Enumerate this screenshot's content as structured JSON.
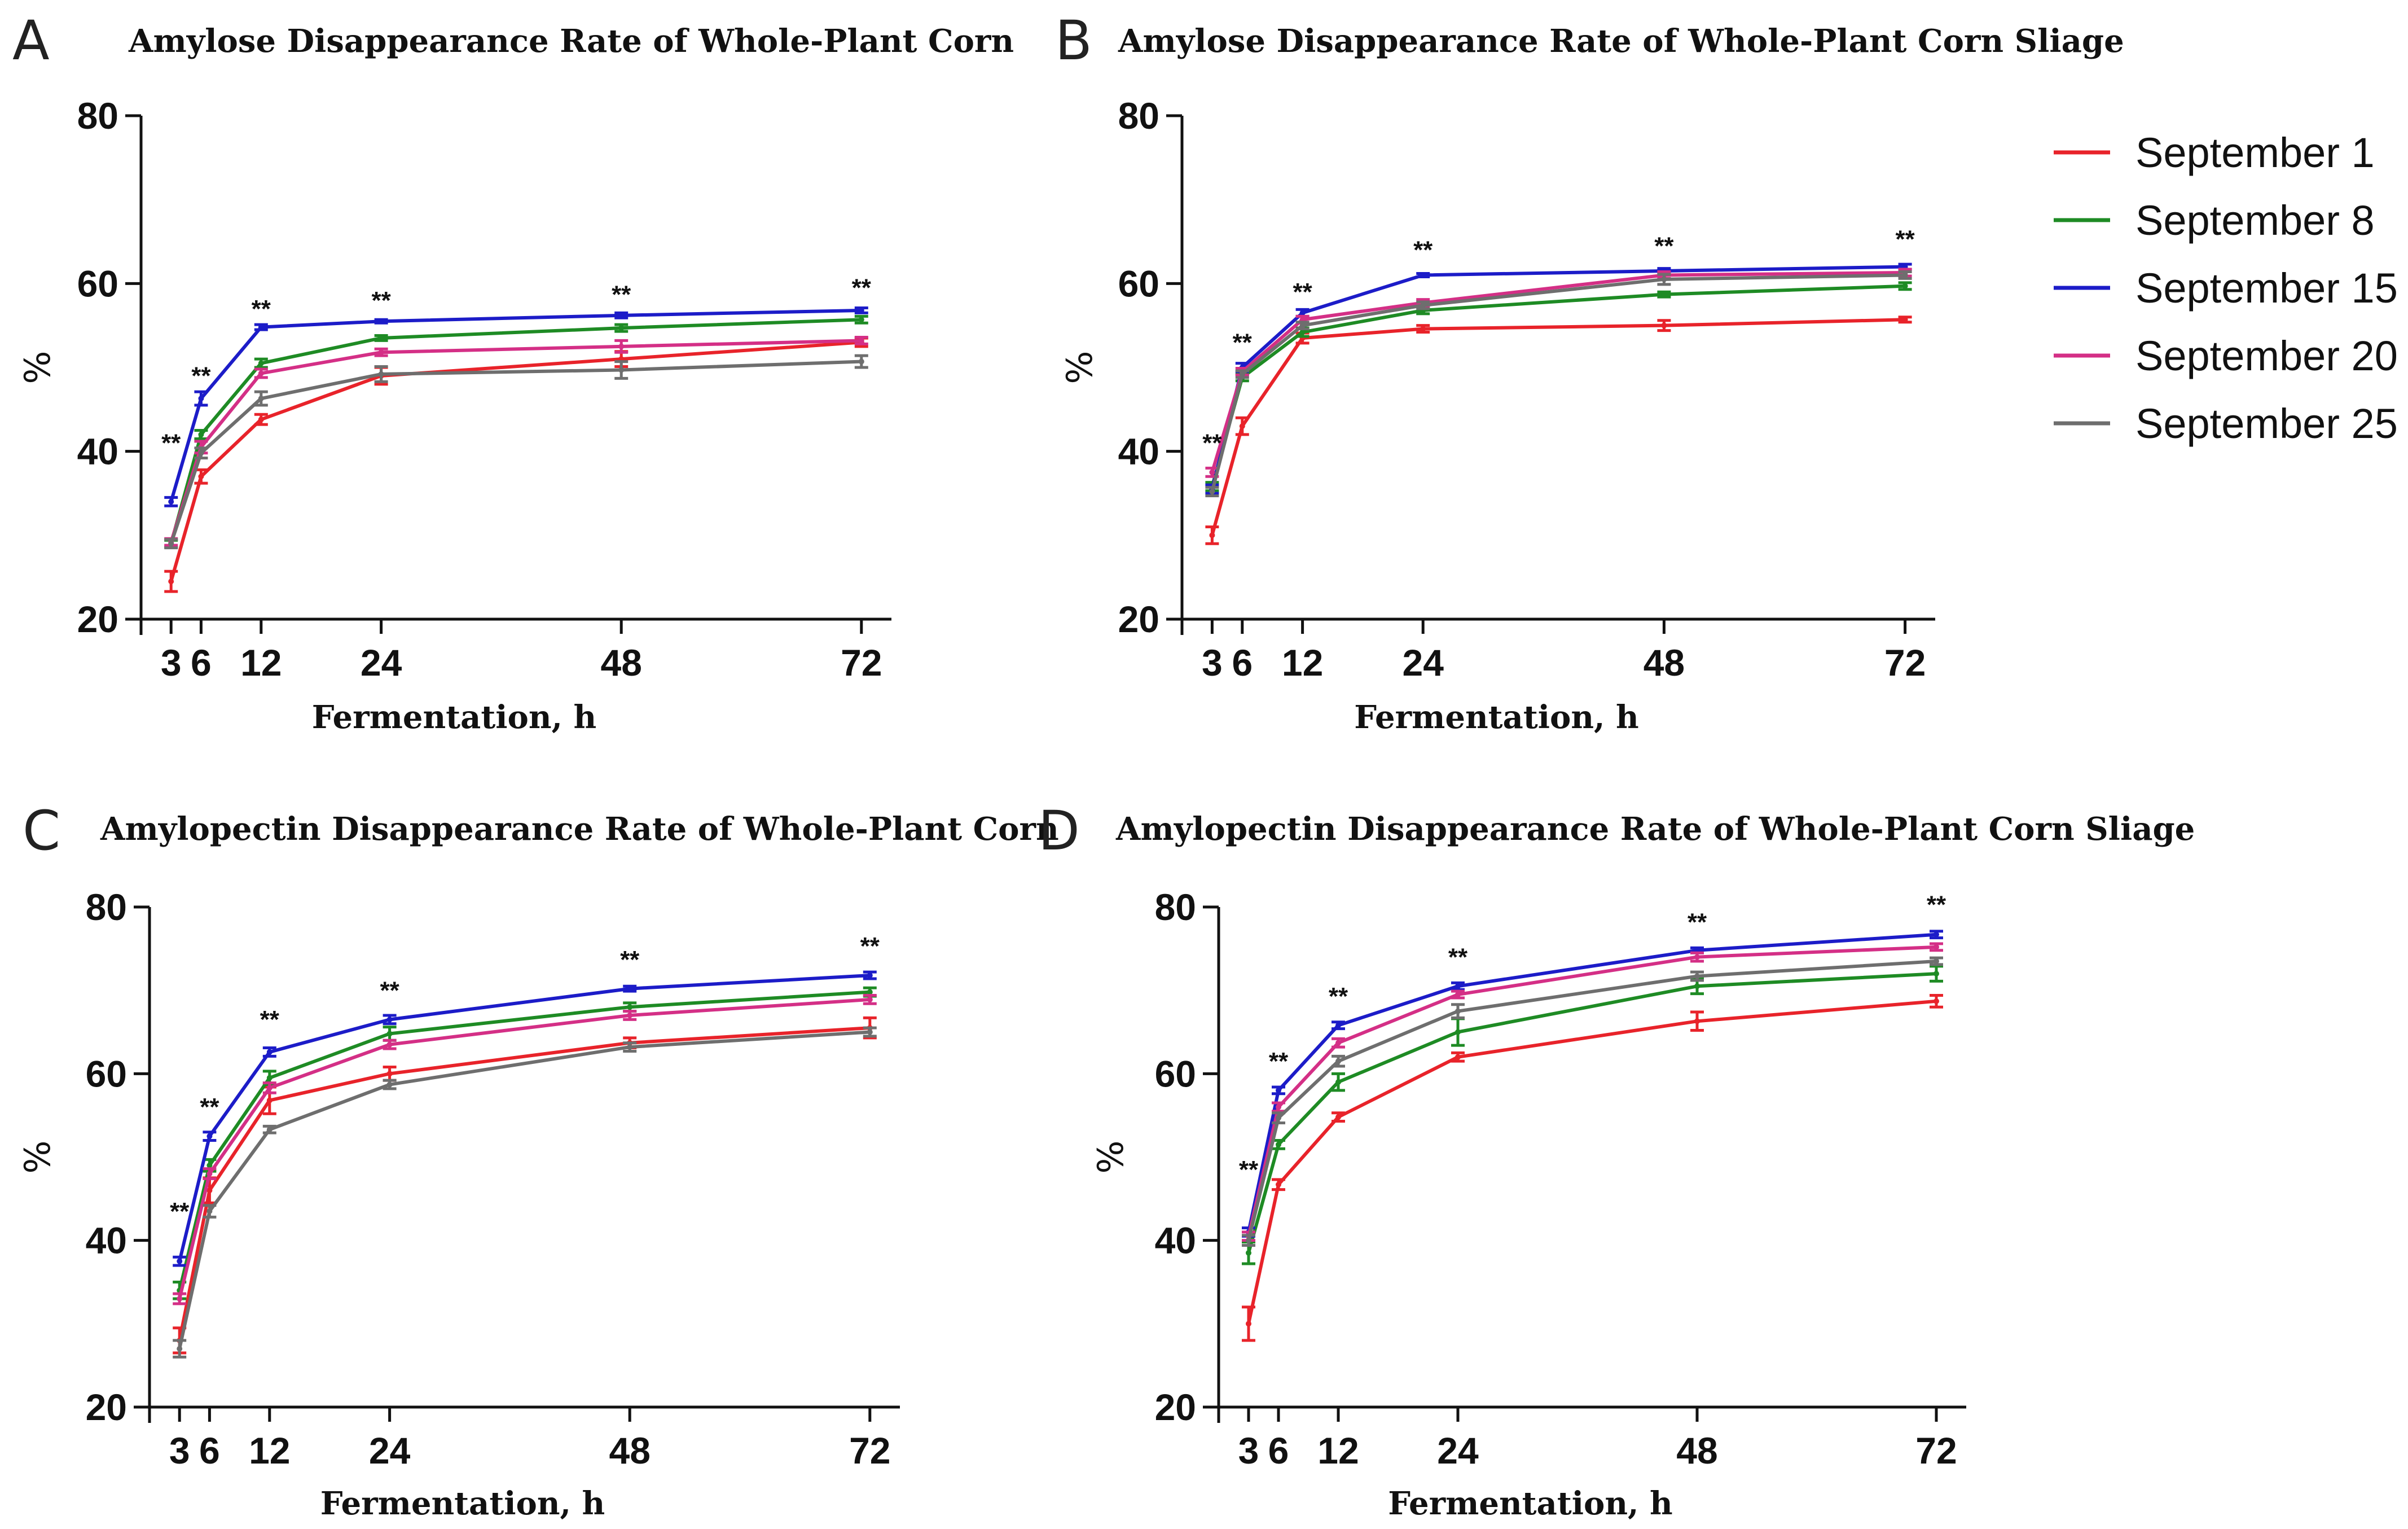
{
  "colors": {
    "September 1": "#e8232a",
    "September 8": "#1e8b24",
    "September 15": "#1c1cc8",
    "September 20": "#d42f86",
    "September 25": "#6e6e6e"
  },
  "legend": {
    "entries": [
      "September 1",
      "September 8",
      "September 15",
      "September 20",
      "September 25"
    ]
  },
  "chart_data": [
    {
      "panel": "A",
      "type": "line",
      "title": "Amylose Disappearance Rate of Whole-Plant Corn",
      "xlabel": "Fermentation, h",
      "ylabel": "%",
      "xlim": [
        0,
        75
      ],
      "ylim": [
        20,
        80
      ],
      "xticks": [
        3,
        6,
        12,
        24,
        48,
        72
      ],
      "yticks": [
        20,
        40,
        60,
        80
      ],
      "x": [
        3,
        6,
        12,
        24,
        48,
        72
      ],
      "series": [
        {
          "name": "September 1",
          "values": [
            24.5,
            37.0,
            43.8,
            49.0,
            51.0,
            53.0
          ],
          "err": [
            1.2,
            0.8,
            0.6,
            1.0,
            0.9,
            0.5
          ]
        },
        {
          "name": "September 8",
          "values": [
            29.0,
            42.0,
            50.5,
            53.5,
            54.7,
            55.7
          ],
          "err": [
            0.4,
            0.5,
            0.5,
            0.3,
            0.4,
            0.4
          ]
        },
        {
          "name": "September 15",
          "values": [
            34.0,
            46.3,
            54.8,
            55.5,
            56.2,
            56.8
          ],
          "err": [
            0.5,
            0.8,
            0.3,
            0.2,
            0.3,
            0.3
          ]
        },
        {
          "name": "September 20",
          "values": [
            29.2,
            40.5,
            49.3,
            51.8,
            52.5,
            53.2
          ],
          "err": [
            0.4,
            0.7,
            0.5,
            0.4,
            0.7,
            0.4
          ]
        },
        {
          "name": "September 25",
          "values": [
            29.0,
            39.8,
            46.3,
            49.2,
            49.7,
            50.7
          ],
          "err": [
            0.5,
            0.6,
            0.8,
            0.9,
            1.0,
            0.7
          ]
        }
      ],
      "annotations": [
        {
          "x": 3,
          "y": 40,
          "text": "**"
        },
        {
          "x": 6,
          "y": 48,
          "text": "**"
        },
        {
          "x": 12,
          "y": 56,
          "text": "**"
        },
        {
          "x": 24,
          "y": 57,
          "text": "**"
        },
        {
          "x": 48,
          "y": 57.7,
          "text": "**"
        },
        {
          "x": 72,
          "y": 58.5,
          "text": "**"
        }
      ]
    },
    {
      "panel": "B",
      "type": "line",
      "title": "Amylose Disappearance Rate of Whole-Plant Corn Sliage",
      "xlabel": "Fermentation, h",
      "ylabel": "%",
      "xlim": [
        0,
        75
      ],
      "ylim": [
        20,
        80
      ],
      "xticks": [
        3,
        6,
        12,
        24,
        48,
        72
      ],
      "yticks": [
        20,
        40,
        60,
        80
      ],
      "x": [
        3,
        6,
        12,
        24,
        48,
        72
      ],
      "series": [
        {
          "name": "September 1",
          "values": [
            30.0,
            43.0,
            53.5,
            54.6,
            55.0,
            55.7
          ],
          "err": [
            1.0,
            1.0,
            0.6,
            0.4,
            0.6,
            0.3
          ]
        },
        {
          "name": "September 8",
          "values": [
            35.8,
            48.8,
            54.2,
            56.8,
            58.7,
            59.7
          ],
          "err": [
            0.5,
            0.4,
            0.5,
            0.4,
            0.3,
            0.4
          ]
        },
        {
          "name": "September 15",
          "values": [
            35.5,
            50.0,
            56.5,
            61.0,
            61.5,
            62.0
          ],
          "err": [
            0.5,
            0.5,
            0.4,
            0.2,
            0.3,
            0.3
          ]
        },
        {
          "name": "September 20",
          "values": [
            37.5,
            49.5,
            55.7,
            57.7,
            61.0,
            61.3
          ],
          "err": [
            0.5,
            0.4,
            0.4,
            0.4,
            0.4,
            0.4
          ]
        },
        {
          "name": "September 25",
          "values": [
            35.2,
            49.2,
            55.0,
            57.4,
            60.5,
            61.0
          ],
          "err": [
            0.5,
            0.4,
            0.4,
            0.4,
            0.6,
            0.4
          ]
        }
      ],
      "annotations": [
        {
          "x": 3,
          "y": 40,
          "text": "**"
        },
        {
          "x": 6,
          "y": 52,
          "text": "**"
        },
        {
          "x": 12,
          "y": 58,
          "text": "**"
        },
        {
          "x": 24,
          "y": 63,
          "text": "**"
        },
        {
          "x": 48,
          "y": 63.5,
          "text": "**"
        },
        {
          "x": 72,
          "y": 64.3,
          "text": "**"
        }
      ]
    },
    {
      "panel": "C",
      "type": "line",
      "title": "Amylopectin Disappearance Rate of Whole-Plant Corn",
      "xlabel": "Fermentation, h",
      "ylabel": "%",
      "xlim": [
        0,
        75
      ],
      "ylim": [
        20,
        80
      ],
      "xticks": [
        3,
        6,
        12,
        24,
        48,
        72
      ],
      "yticks": [
        20,
        40,
        60,
        80
      ],
      "x": [
        3,
        6,
        12,
        24,
        48,
        72
      ],
      "series": [
        {
          "name": "September 1",
          "values": [
            28.0,
            46.0,
            56.8,
            60.0,
            63.7,
            65.5
          ],
          "err": [
            1.5,
            1.5,
            1.6,
            0.8,
            0.6,
            1.2
          ]
        },
        {
          "name": "September 8",
          "values": [
            34.0,
            49.0,
            59.5,
            64.8,
            68.0,
            69.8
          ],
          "err": [
            1.0,
            0.7,
            0.8,
            0.8,
            0.5,
            0.5
          ]
        },
        {
          "name": "September 15",
          "values": [
            37.5,
            52.5,
            62.6,
            66.5,
            70.2,
            71.8
          ],
          "err": [
            0.5,
            0.5,
            0.5,
            0.5,
            0.3,
            0.4
          ]
        },
        {
          "name": "September 20",
          "values": [
            33.0,
            48.0,
            58.3,
            63.5,
            67.0,
            68.9
          ],
          "err": [
            0.6,
            0.6,
            0.6,
            0.5,
            0.5,
            0.5
          ]
        },
        {
          "name": "September 25",
          "values": [
            27.0,
            43.5,
            53.3,
            58.7,
            63.2,
            65.0
          ],
          "err": [
            1.0,
            0.7,
            0.4,
            0.5,
            0.5,
            0.5
          ]
        }
      ],
      "annotations": [
        {
          "x": 3,
          "y": 42.5,
          "text": "**"
        },
        {
          "x": 6,
          "y": 55,
          "text": "**"
        },
        {
          "x": 12,
          "y": 65.5,
          "text": "**"
        },
        {
          "x": 24,
          "y": 69,
          "text": "**"
        },
        {
          "x": 48,
          "y": 72.7,
          "text": "**"
        },
        {
          "x": 72,
          "y": 74.3,
          "text": "**"
        }
      ]
    },
    {
      "panel": "D",
      "type": "line",
      "title": "Amylopectin Disappearance Rate of Whole-Plant Corn Sliage",
      "xlabel": "Fermentation, h",
      "ylabel": "%",
      "xlim": [
        0,
        75
      ],
      "ylim": [
        20,
        80
      ],
      "xticks": [
        3,
        6,
        12,
        24,
        48,
        72
      ],
      "yticks": [
        20,
        40,
        60,
        80
      ],
      "x": [
        3,
        6,
        12,
        24,
        48,
        72
      ],
      "series": [
        {
          "name": "September 1",
          "values": [
            30.0,
            46.7,
            54.8,
            62.0,
            66.3,
            68.7
          ],
          "err": [
            2.0,
            0.6,
            0.5,
            0.5,
            1.1,
            0.7
          ]
        },
        {
          "name": "September 8",
          "values": [
            38.5,
            51.5,
            59.0,
            65.0,
            70.5,
            72.0
          ],
          "err": [
            1.3,
            0.5,
            1.0,
            1.6,
            0.9,
            0.9
          ]
        },
        {
          "name": "September 15",
          "values": [
            41.0,
            58.0,
            65.8,
            70.5,
            74.8,
            76.7
          ],
          "err": [
            0.5,
            0.4,
            0.4,
            0.4,
            0.3,
            0.4
          ]
        },
        {
          "name": "September 20",
          "values": [
            40.5,
            56.0,
            63.7,
            69.5,
            74.0,
            75.2
          ],
          "err": [
            0.5,
            0.5,
            0.5,
            0.4,
            0.5,
            0.4
          ]
        },
        {
          "name": "September 25",
          "values": [
            40.0,
            54.7,
            61.5,
            67.5,
            71.7,
            73.5
          ],
          "err": [
            0.6,
            0.6,
            0.6,
            0.8,
            0.5,
            0.4
          ]
        }
      ],
      "annotations": [
        {
          "x": 3,
          "y": 47.5,
          "text": "**"
        },
        {
          "x": 6,
          "y": 60.5,
          "text": "**"
        },
        {
          "x": 12,
          "y": 68.3,
          "text": "**"
        },
        {
          "x": 24,
          "y": 73,
          "text": "**"
        },
        {
          "x": 48,
          "y": 77.2,
          "text": "**"
        },
        {
          "x": 72,
          "y": 79.3,
          "text": "**"
        }
      ]
    }
  ]
}
